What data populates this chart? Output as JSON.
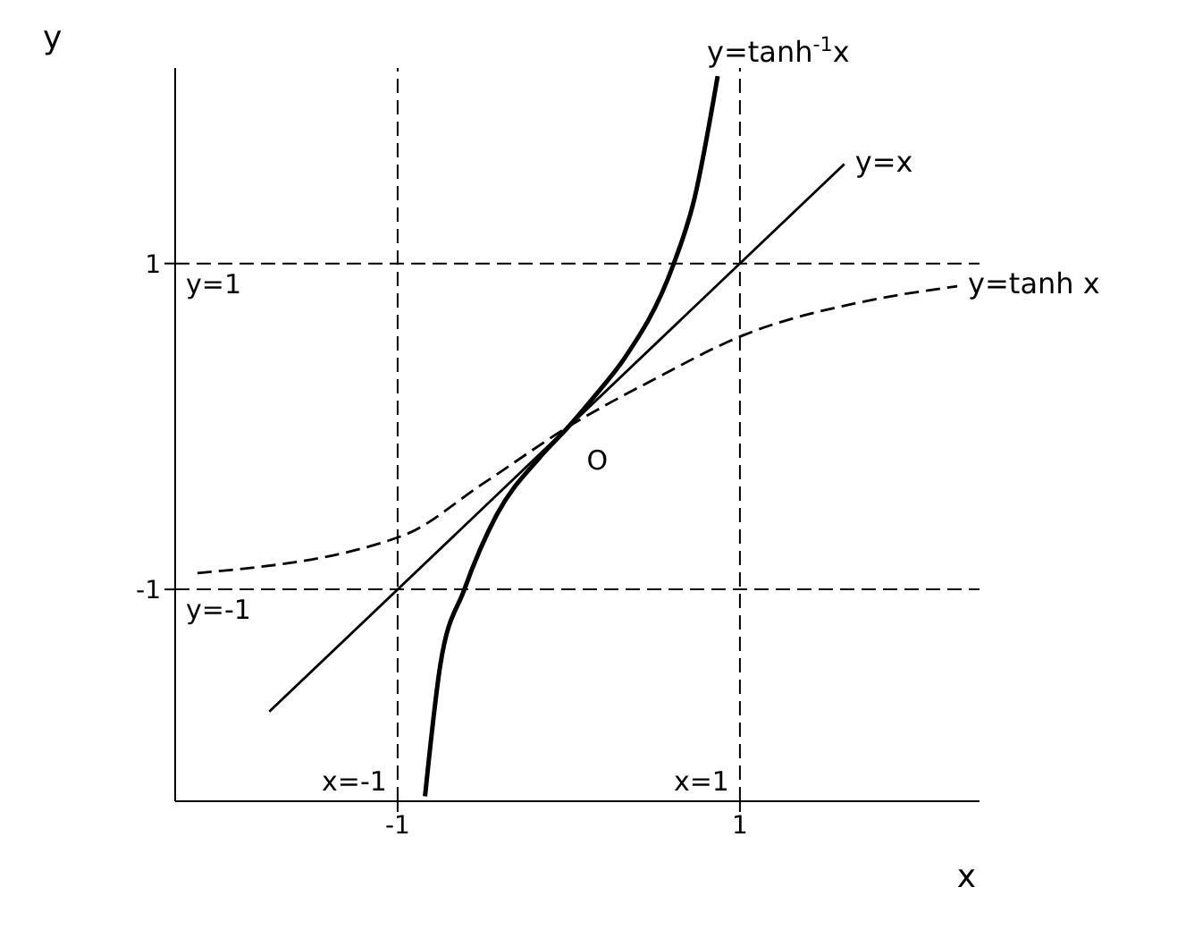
{
  "chart_data": {
    "type": "line",
    "xlabel": "x",
    "ylabel": "y",
    "xlim": [
      -2.3,
      2.4
    ],
    "ylim": [
      -2.3,
      2.2
    ],
    "xticks": [
      -1,
      1
    ],
    "yticks": [
      -1,
      1
    ],
    "series": [
      {
        "name": "y=tanh$^{-1}$x",
        "color": "#000000",
        "line_style": "solid",
        "x": [
          -0.84,
          -0.75,
          -0.61,
          -0.42,
          -0.17,
          0,
          0.17,
          0.32,
          0.61,
          0.73,
          0.87
        ],
        "values": [
          -2.27,
          -1.46,
          -1.0,
          -0.54,
          -0.19,
          0,
          0.21,
          0.41,
          0.99,
          1.38,
          2.15
        ]
      },
      {
        "name": "y=x",
        "color": "#000000",
        "line_style": "solid",
        "x": [
          -1.75,
          1.61
        ],
        "values": [
          -1.75,
          1.61
        ]
      },
      {
        "name": "y=tanh x",
        "color": "#000000",
        "line_style": "dashed",
        "x": [
          -2.17,
          -0.97,
          -0.5,
          0,
          0.5,
          1.02,
          1.74,
          2.27
        ],
        "values": [
          -0.9,
          -0.67,
          -0.35,
          0,
          0.29,
          0.56,
          0.77,
          0.86
        ]
      }
    ],
    "ref_lines": [
      {
        "axis": "y",
        "value": 1,
        "label": "y=1",
        "line_style": "dashed"
      },
      {
        "axis": "y",
        "value": -1,
        "label": "y=-1",
        "line_style": "dashed"
      },
      {
        "axis": "x",
        "value": -1,
        "label": "x=-1",
        "line_style": "dashed"
      },
      {
        "axis": "x",
        "value": 1,
        "label": "x=1",
        "line_style": "dashed"
      }
    ],
    "annotations": [
      {
        "text": "O",
        "x": 0,
        "y": 0
      }
    ]
  }
}
